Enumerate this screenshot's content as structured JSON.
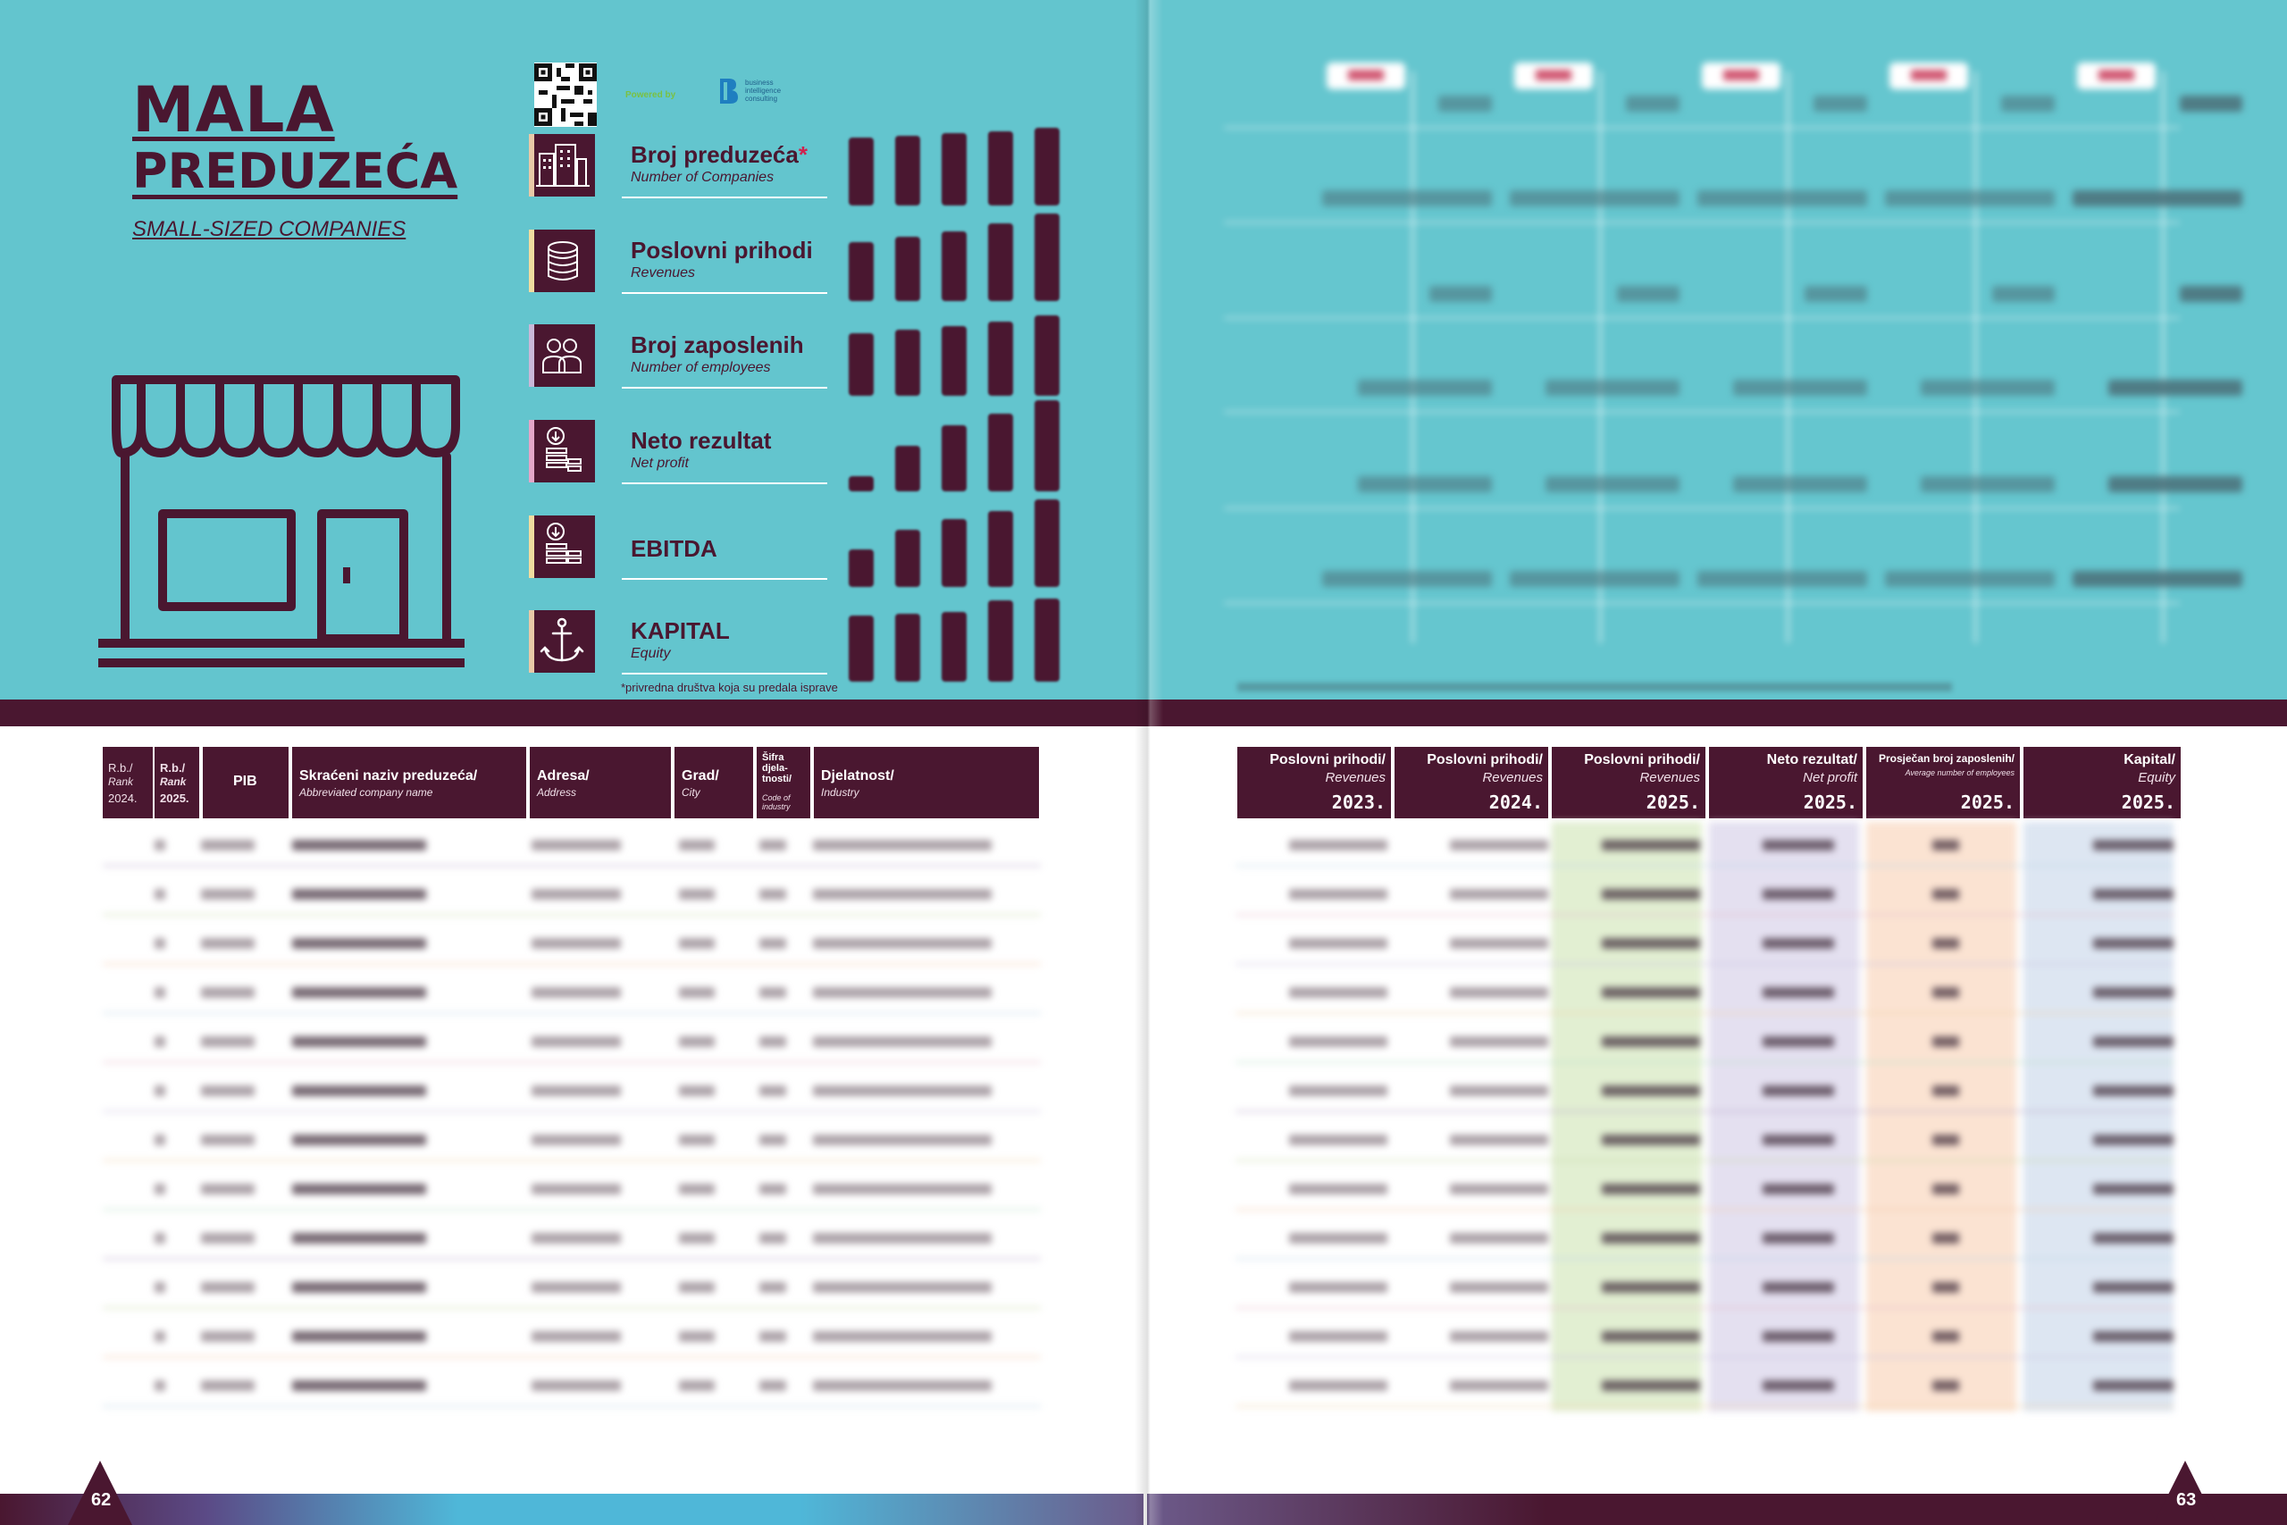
{
  "title": {
    "line1": "MALA",
    "line2": "PREDUZEĆA",
    "subtitle": "SMALL-SIZED COMPANIES"
  },
  "branding": {
    "powered_by": "Powered by",
    "partner_line1": "business",
    "partner_line2": "intelligence",
    "partner_line3": "consulting"
  },
  "indicators": [
    {
      "title": "Broj preduzeća",
      "marker": "*",
      "subtitle": "Number of Companies",
      "icon": "buildings-icon",
      "tab_color": "#e8c9a8",
      "bars": [
        0.72,
        0.74,
        0.76,
        0.78,
        0.82
      ]
    },
    {
      "title": "Poslovni  prihodi",
      "marker": "",
      "subtitle": "Revenues",
      "icon": "coins-stack-icon",
      "tab_color": "#f0dca0",
      "bars": [
        0.62,
        0.68,
        0.74,
        0.82,
        0.92
      ]
    },
    {
      "title": "Broj zaposlenih",
      "marker": "",
      "subtitle": "Number of employees",
      "icon": "employees-icon",
      "tab_color": "#c9b8d8",
      "bars": [
        0.66,
        0.7,
        0.74,
        0.78,
        0.85
      ]
    },
    {
      "title": "Neto rezultat",
      "marker": "",
      "subtitle": "Net profit",
      "icon": "profit-down-icon",
      "tab_color": "#e4a6c8",
      "bars": [
        0.16,
        0.48,
        0.7,
        0.82,
        0.96
      ]
    },
    {
      "title": "EBITDA",
      "marker": "",
      "subtitle": "",
      "icon": "ebitda-icon",
      "tab_color": "#f0dca0",
      "bars": [
        0.4,
        0.6,
        0.72,
        0.8,
        0.92
      ]
    },
    {
      "title": "KAPITAL",
      "marker": "",
      "subtitle": "Equity",
      "icon": "anchor-icon",
      "tab_color": "#e8c9a8",
      "bars": [
        0.7,
        0.72,
        0.74,
        0.86,
        0.88
      ]
    }
  ],
  "footnote_left": "*privredna društva koja su predala isprave",
  "table": {
    "left_headers": [
      {
        "main": "R.b./",
        "en": "Rank",
        "year": "2024."
      },
      {
        "main": "R.b./",
        "en": "Rank",
        "year": "2025."
      },
      {
        "main": "PIB",
        "en": "",
        "year": ""
      },
      {
        "main": "Skraćeni naziv preduzeća/",
        "en": "Abbreviated company name",
        "year": ""
      },
      {
        "main": "Adresa/",
        "en": "Address",
        "year": ""
      },
      {
        "main": "Grad/",
        "en": "City",
        "year": ""
      },
      {
        "main": "Šifra djela-tnosti/",
        "en": "Code of industry",
        "year": ""
      },
      {
        "main": "Djelatnost/",
        "en": "Industry",
        "year": ""
      }
    ],
    "right_headers": [
      {
        "main": "Poslovni prihodi/",
        "en": "Revenues",
        "year": "2023."
      },
      {
        "main": "Poslovni prihodi/",
        "en": "Revenues",
        "year": "2024."
      },
      {
        "main": "Poslovni prihodi/",
        "en": "Revenues",
        "year": "2025."
      },
      {
        "main": "Neto rezultat/",
        "en": "Net profit",
        "year": "2025."
      },
      {
        "main": "Prosječan broj zaposlenih/",
        "en": "Average number of employees",
        "year": "2025."
      },
      {
        "main": "Kapital/",
        "en": "Equity",
        "year": "2025."
      }
    ]
  },
  "pages": {
    "left": "62",
    "right": "63"
  },
  "colors": {
    "maroon": "#4a1730",
    "teal": "#63c5ce",
    "accent_red": "#d0224e"
  }
}
